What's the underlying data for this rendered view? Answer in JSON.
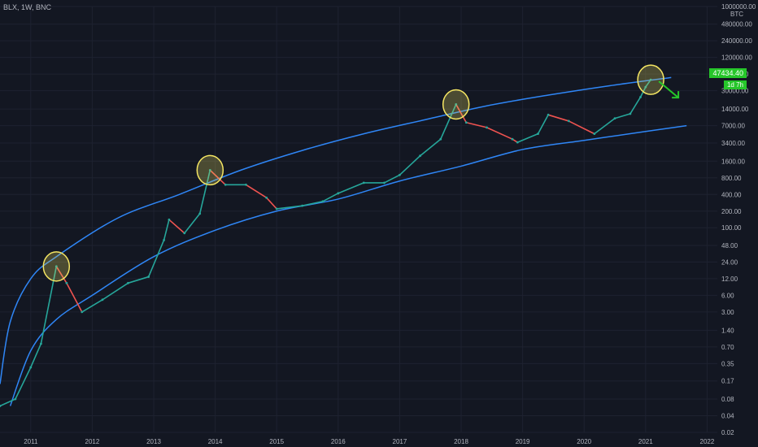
{
  "header": {
    "symbol_label": "BLX, 1W, BNC"
  },
  "price_axis": {
    "unit": "BTC",
    "ticks": [
      "1000000.00",
      "480000.00",
      "240000.00",
      "120000.00",
      "60000.00",
      "30000.00",
      "14000.00",
      "7000.00",
      "3400.00",
      "1600.00",
      "800.00",
      "400.00",
      "200.00",
      "100.00",
      "48.00",
      "24.00",
      "12.00",
      "6.00",
      "3.00",
      "1.40",
      "0.70",
      "0.35",
      "0.17",
      "0.08",
      "0.04",
      "0.02"
    ],
    "current_price": "47434.40",
    "countdown": "1d 7h"
  },
  "time_axis": {
    "ticks": [
      "2011",
      "2012",
      "2013",
      "2014",
      "2015",
      "2016",
      "2017",
      "2018",
      "2019",
      "2020",
      "2021",
      "2022"
    ]
  },
  "colors": {
    "background": "#131722",
    "up": "#26a69a",
    "down": "#ef5350",
    "band": "#2f86f6",
    "circle": "#f5e663",
    "arrow": "#26c62a",
    "grid": "#1e2230"
  },
  "chart_data": {
    "type": "line",
    "title": "BLX, 1W, BNC",
    "yscale": "log",
    "ylim": [
      0.02,
      1000000
    ],
    "xlim": [
      "2010-07",
      "2022-03"
    ],
    "series": [
      {
        "x": [
          "2010-07",
          "2010-10",
          "2011-01",
          "2011-03",
          "2011-06",
          "2011-08",
          "2011-11",
          "2012-03",
          "2012-08",
          "2012-12",
          "2013-03",
          "2013-04",
          "2013-07",
          "2013-10",
          "2013-12",
          "2014-03",
          "2014-07",
          "2014-11",
          "2015-01",
          "2015-06",
          "2015-10",
          "2016-01",
          "2016-06",
          "2016-10",
          "2017-01",
          "2017-05",
          "2017-09",
          "2017-12",
          "2018-02",
          "2018-06",
          "2018-11",
          "2018-12",
          "2019-04",
          "2019-06",
          "2019-10",
          "2020-03",
          "2020-07",
          "2020-10",
          "2020-12",
          "2021-01",
          "2021-02"
        ],
        "values": [
          0.06,
          0.08,
          0.3,
          0.8,
          20,
          10,
          3,
          5,
          10,
          13,
          60,
          140,
          80,
          180,
          1100,
          600,
          600,
          350,
          220,
          250,
          300,
          420,
          650,
          650,
          900,
          2000,
          4000,
          17000,
          8000,
          6500,
          4000,
          3500,
          5000,
          11000,
          8500,
          5000,
          9500,
          11500,
          23000,
          35000,
          47434.4
        ]
      }
    ],
    "annotations": [
      {
        "type": "circle",
        "x": "2011-06"
      },
      {
        "type": "circle",
        "x": "2013-12"
      },
      {
        "type": "circle",
        "x": "2017-12"
      },
      {
        "type": "circle",
        "x": "2021-02"
      },
      {
        "type": "arrow",
        "x": "2021-02",
        "direction": "down-right"
      }
    ],
    "bands": [
      {
        "name": "upper",
        "x": [
          "2010-07",
          "2010-09",
          "2011-01",
          "2011-06",
          "2012-06",
          "2013-06",
          "2014-06",
          "2015-06",
          "2016-06",
          "2017-06",
          "2018-06",
          "2019-06",
          "2020-06",
          "2021-06"
        ],
        "values": [
          0.15,
          2,
          12,
          30,
          150,
          400,
          1100,
          2500,
          5000,
          9000,
          16000,
          25000,
          37000,
          52000
        ]
      },
      {
        "name": "lower",
        "x": [
          "2010-09",
          "2011-01",
          "2011-06",
          "2012-01",
          "2013-01",
          "2014-01",
          "2015-01",
          "2016-01",
          "2017-01",
          "2018-01",
          "2019-01",
          "2020-01",
          "2021-01",
          "2021-09"
        ],
        "values": [
          0.06,
          0.6,
          2.2,
          6,
          30,
          90,
          200,
          330,
          700,
          1300,
          2600,
          3800,
          5500,
          7000
        ]
      }
    ]
  }
}
